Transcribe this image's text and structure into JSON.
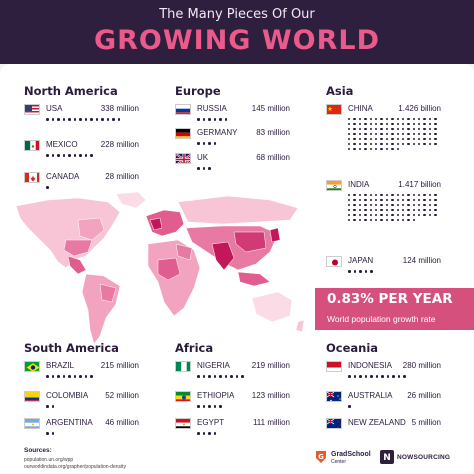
{
  "header": {
    "subtitle": "The Many Pieces Of Our",
    "title": "GROWING WORLD"
  },
  "growth": {
    "value": "0.83% PER YEAR",
    "label": "World population growth rate"
  },
  "regions": {
    "north_america": {
      "title": "North America"
    },
    "europe": {
      "title": "Europe"
    },
    "asia": {
      "title": "Asia"
    },
    "south_america": {
      "title": "South America"
    },
    "africa": {
      "title": "Africa"
    },
    "oceania": {
      "title": "Oceania"
    }
  },
  "countries": {
    "usa": {
      "name": "USA",
      "value": "338 million"
    },
    "mexico": {
      "name": "MEXICO",
      "value": "228 million"
    },
    "canada": {
      "name": "CANADA",
      "value": "28 million"
    },
    "russia": {
      "name": "RUSSIA",
      "value": "145 million"
    },
    "germany": {
      "name": "GERMANY",
      "value": "83 million"
    },
    "uk": {
      "name": "UK",
      "value": "68 million"
    },
    "china": {
      "name": "CHINA",
      "value": "1.426 billion"
    },
    "india": {
      "name": "INDIA",
      "value": "1.417 billion"
    },
    "japan": {
      "name": "JAPAN",
      "value": "124 million"
    },
    "brazil": {
      "name": "BRAZIL",
      "value": "215 million"
    },
    "colombia": {
      "name": "COLOMBIA",
      "value": "52 million"
    },
    "argentina": {
      "name": "ARGENTINA",
      "value": "46 million"
    },
    "nigeria": {
      "name": "NIGERIA",
      "value": "219 million"
    },
    "ethiopia": {
      "name": "ETHIOPIA",
      "value": "123 million"
    },
    "egypt": {
      "name": "EGYPT",
      "value": "111 million"
    },
    "indonesia": {
      "name": "INDONESIA",
      "value": "280 million"
    },
    "australia": {
      "name": "AUSTRALIA",
      "value": "26 million"
    },
    "new_zealand": {
      "name": "NEW ZEALAND",
      "value": "5 million"
    }
  },
  "sources": {
    "label": "Sources:",
    "lines": [
      "population.un.org/wpp",
      "ourworldindata.org/grapher/population-density"
    ]
  },
  "logos": {
    "gradschool": "GradSchool",
    "gradschool_sub": "Center",
    "visual": "NOWSOURCING"
  },
  "colors": {
    "header_bg": "#2e1f3e",
    "accent": "#d6507d",
    "map_light": "#f7c5d6",
    "map_dark": "#c2185b"
  },
  "chart_data": {
    "type": "table",
    "units": "million",
    "series": [
      {
        "values": [
          {
            "region": "North America",
            "country": "USA",
            "population": 338
          },
          {
            "region": "North America",
            "country": "MEXICO",
            "population": 228
          },
          {
            "region": "North America",
            "country": "CANADA",
            "population": 28
          },
          {
            "region": "Europe",
            "country": "RUSSIA",
            "population": 145
          },
          {
            "region": "Europe",
            "country": "GERMANY",
            "population": 83
          },
          {
            "region": "Europe",
            "country": "UK",
            "population": 68
          },
          {
            "region": "Asia",
            "country": "CHINA",
            "population": 1426
          },
          {
            "region": "Asia",
            "country": "INDIA",
            "population": 1417
          },
          {
            "region": "Asia",
            "country": "JAPAN",
            "population": 124
          },
          {
            "region": "South America",
            "country": "BRAZIL",
            "population": 215
          },
          {
            "region": "South America",
            "country": "COLOMBIA",
            "population": 52
          },
          {
            "region": "South America",
            "country": "ARGENTINA",
            "population": 46
          },
          {
            "region": "Africa",
            "country": "NIGERIA",
            "population": 219
          },
          {
            "region": "Africa",
            "country": "ETHIOPIA",
            "population": 123
          },
          {
            "region": "Africa",
            "country": "EGYPT",
            "population": 111
          },
          {
            "region": "Oceania",
            "country": "INDONESIA",
            "population": 280
          },
          {
            "region": "Oceania",
            "country": "AUSTRALIA",
            "population": 26
          },
          {
            "region": "Oceania",
            "country": "NEW ZEALAND",
            "population": 5
          }
        ]
      }
    ]
  }
}
